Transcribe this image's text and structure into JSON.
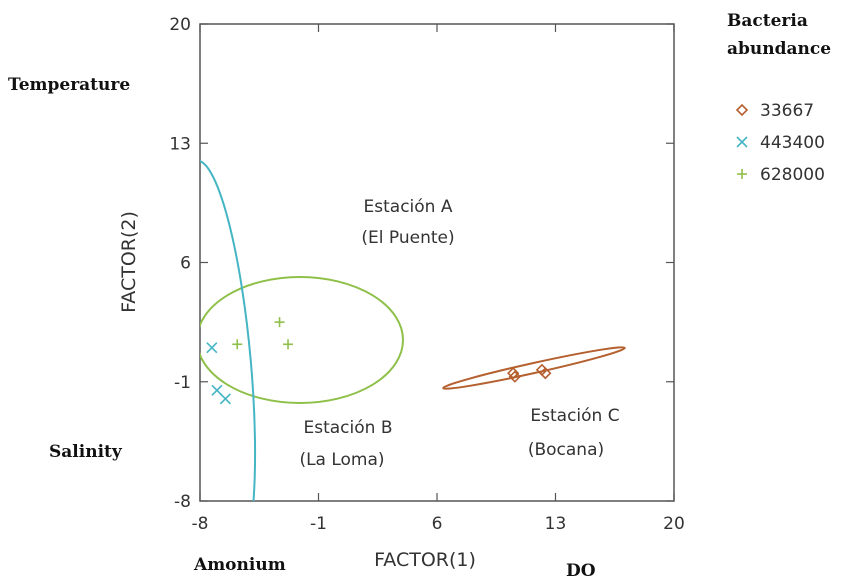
{
  "chart_data": {
    "type": "scatter",
    "title": "",
    "xlabel": "FACTOR(1)",
    "ylabel": "FACTOR(2)",
    "xlim": [
      -8,
      20
    ],
    "ylim": [
      -8,
      20
    ],
    "x_ticks": [
      "-8",
      "-1",
      "6",
      "13",
      "20"
    ],
    "y_ticks": [
      "20",
      "13",
      "6",
      "-1",
      "-8"
    ],
    "grid": false,
    "legend_position": "top-right",
    "legend_title_lines": [
      "Bacteria",
      "abundance"
    ],
    "series": [
      {
        "name": "33667",
        "marker": "diamond",
        "color": "#b5602f",
        "points": [
          [
            10.5,
            -0.5
          ],
          [
            10.6,
            -0.7
          ],
          [
            12.2,
            -0.3
          ],
          [
            12.4,
            -0.5
          ]
        ]
      },
      {
        "name": "443400",
        "marker": "x",
        "color": "#45b5c4",
        "points": [
          [
            -7.3,
            1.0
          ],
          [
            -7.0,
            -1.5
          ],
          [
            -6.5,
            -2.0
          ]
        ]
      },
      {
        "name": "628000",
        "marker": "plus",
        "color": "#8fc04a",
        "points": [
          [
            -5.8,
            1.2
          ],
          [
            -3.3,
            2.5
          ],
          [
            -2.8,
            1.2
          ]
        ]
      }
    ],
    "annotations": {
      "station_a_line1": "Estación A",
      "station_a_line2": "(El Puente)",
      "station_b_line1": "Estación B",
      "station_b_line2": "(La Loma)",
      "station_c_line1": "Estación C",
      "station_c_line2": "(Bocana)"
    },
    "variable_labels": {
      "temperature": "Temperature",
      "salinity": "Salinity",
      "amonium": "Amonium",
      "do": "DO"
    }
  }
}
